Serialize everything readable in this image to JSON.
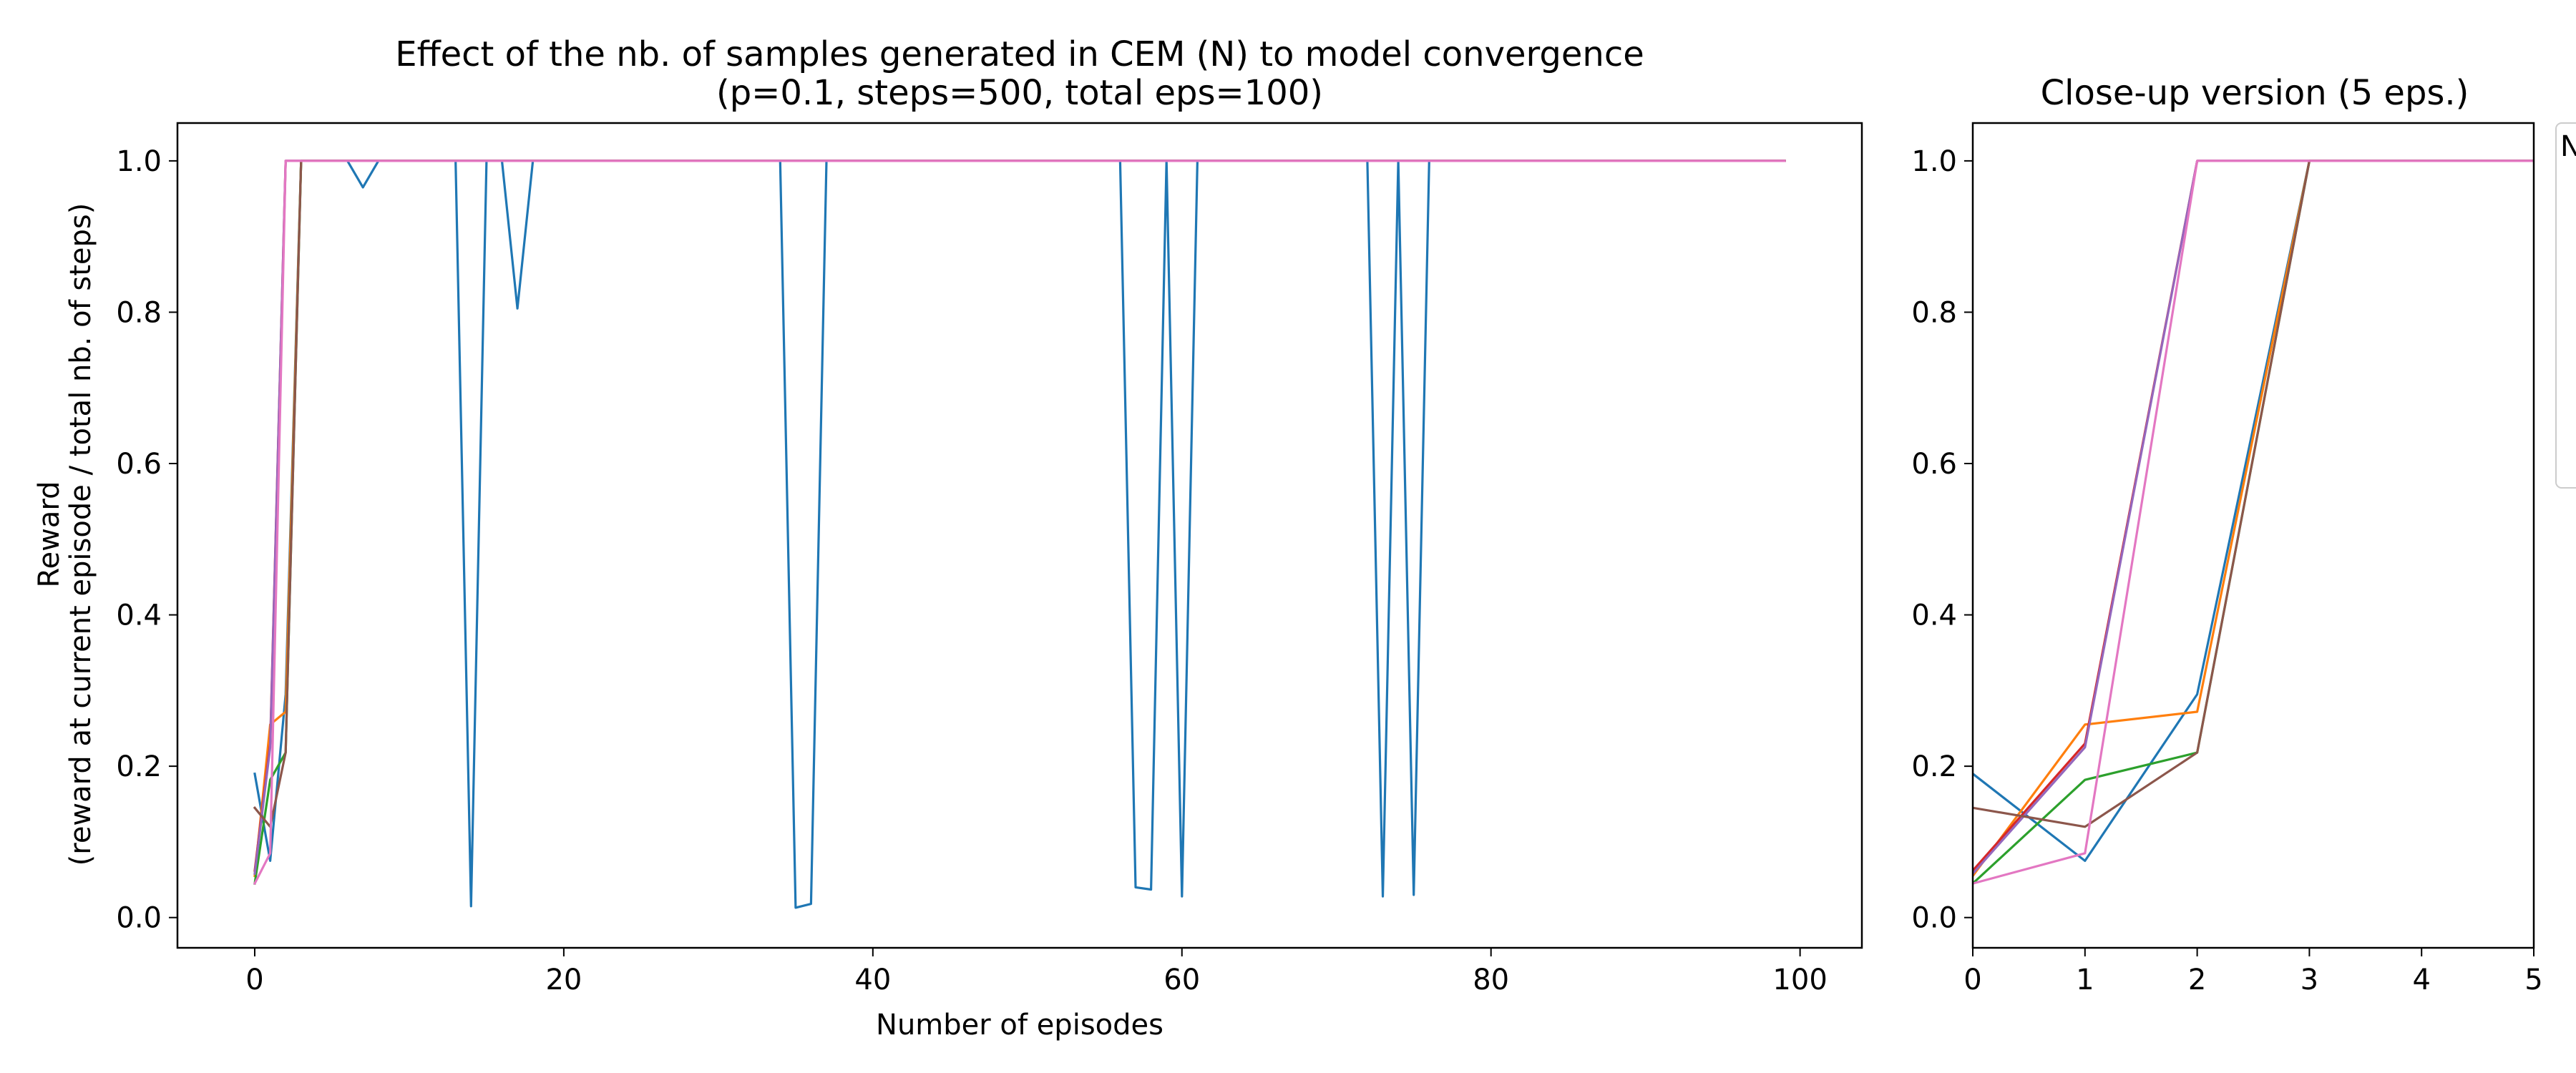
{
  "chart_data": [
    {
      "type": "line",
      "title": "Effect of the nb. of samples generated in CEM (N) to model convergence",
      "subtitle": "(p=0.1, steps=500, total eps=100)",
      "xlabel": "Number of episodes",
      "ylabel_line1": "Reward",
      "ylabel_line2": "(reward at current episode / total nb. of steps)",
      "xlim": [
        -5,
        104
      ],
      "ylim": [
        -0.04,
        1.05
      ],
      "xticks": [
        0,
        20,
        40,
        60,
        80,
        100
      ],
      "yticks": [
        0.0,
        0.2,
        0.4,
        0.6,
        0.8,
        1.0
      ],
      "grid": false,
      "series": [
        {
          "color": "#1f77b4",
          "points": [
            [
              0,
              0.19
            ],
            [
              1,
              0.075
            ],
            [
              2,
              0.295
            ],
            [
              3,
              1.0
            ],
            [
              6,
              1.0
            ],
            [
              7,
              0.965
            ],
            [
              8,
              1.0
            ],
            [
              13,
              1.0
            ],
            [
              14,
              0.015
            ],
            [
              15,
              1.0
            ],
            [
              16,
              1.0
            ],
            [
              17,
              0.805
            ],
            [
              18,
              1.0
            ],
            [
              34,
              1.0
            ],
            [
              35,
              0.013
            ],
            [
              36,
              0.018
            ],
            [
              37,
              1.0
            ],
            [
              56,
              1.0
            ],
            [
              57,
              0.04
            ],
            [
              58,
              0.037
            ],
            [
              59,
              1.0
            ],
            [
              60,
              0.028
            ],
            [
              61,
              1.0
            ],
            [
              72,
              1.0
            ],
            [
              73,
              0.028
            ],
            [
              74,
              1.0
            ],
            [
              75,
              0.03
            ],
            [
              76,
              1.0
            ],
            [
              99,
              1.0
            ]
          ]
        },
        {
          "color": "#ff7f0e",
          "points": [
            [
              0,
              0.055
            ],
            [
              1,
              0.255
            ],
            [
              2,
              0.272
            ],
            [
              3,
              1.0
            ],
            [
              99,
              1.0
            ]
          ]
        },
        {
          "color": "#2ca02c",
          "points": [
            [
              0,
              0.045
            ],
            [
              1,
              0.182
            ],
            [
              2,
              0.218
            ],
            [
              3,
              1.0
            ],
            [
              99,
              1.0
            ]
          ]
        },
        {
          "color": "#d62728",
          "points": [
            [
              0,
              0.062
            ],
            [
              1,
              0.23
            ],
            [
              2,
              1.0
            ],
            [
              99,
              1.0
            ]
          ]
        },
        {
          "color": "#9467bd",
          "points": [
            [
              0,
              0.058
            ],
            [
              1,
              0.225
            ],
            [
              2,
              1.0
            ],
            [
              99,
              1.0
            ]
          ]
        },
        {
          "color": "#8c564b",
          "points": [
            [
              0,
              0.145
            ],
            [
              1,
              0.12
            ],
            [
              2,
              0.218
            ],
            [
              3,
              1.0
            ],
            [
              99,
              1.0
            ]
          ]
        },
        {
          "color": "#e377c2",
          "points": [
            [
              0,
              0.045
            ],
            [
              1,
              0.085
            ],
            [
              2,
              1.0
            ],
            [
              99,
              1.0
            ]
          ]
        }
      ]
    },
    {
      "type": "line",
      "title": "Close-up version (5 eps.)",
      "xlim": [
        0,
        5
      ],
      "ylim": [
        -0.04,
        1.05
      ],
      "xticks": [
        0,
        1,
        2,
        3,
        4,
        5
      ],
      "yticks": [
        0.0,
        0.2,
        0.4,
        0.6,
        0.8,
        1.0
      ],
      "grid": false,
      "legend_title": "N",
      "legend_placement": "outside right (clipped)",
      "series": [
        {
          "color": "#1f77b4",
          "points": [
            [
              0,
              0.19
            ],
            [
              1,
              0.075
            ],
            [
              2,
              0.295
            ],
            [
              3,
              1.0
            ],
            [
              6,
              1.0
            ]
          ]
        },
        {
          "color": "#ff7f0e",
          "points": [
            [
              0,
              0.055
            ],
            [
              1,
              0.255
            ],
            [
              2,
              0.272
            ],
            [
              3,
              1.0
            ],
            [
              6,
              1.0
            ]
          ]
        },
        {
          "color": "#2ca02c",
          "points": [
            [
              0,
              0.045
            ],
            [
              1,
              0.182
            ],
            [
              2,
              0.218
            ],
            [
              3,
              1.0
            ],
            [
              6,
              1.0
            ]
          ]
        },
        {
          "color": "#d62728",
          "points": [
            [
              0,
              0.062
            ],
            [
              1,
              0.23
            ],
            [
              2,
              1.0
            ],
            [
              6,
              1.0
            ]
          ]
        },
        {
          "color": "#9467bd",
          "points": [
            [
              0,
              0.058
            ],
            [
              1,
              0.225
            ],
            [
              2,
              1.0
            ],
            [
              6,
              1.0
            ]
          ]
        },
        {
          "color": "#8c564b",
          "points": [
            [
              0,
              0.145
            ],
            [
              1,
              0.12
            ],
            [
              2,
              0.218
            ],
            [
              3,
              1.0
            ],
            [
              6,
              1.0
            ]
          ]
        },
        {
          "color": "#e377c2",
          "points": [
            [
              0,
              0.045
            ],
            [
              1,
              0.085
            ],
            [
              2,
              1.0
            ],
            [
              6,
              1.0
            ]
          ]
        }
      ]
    }
  ]
}
